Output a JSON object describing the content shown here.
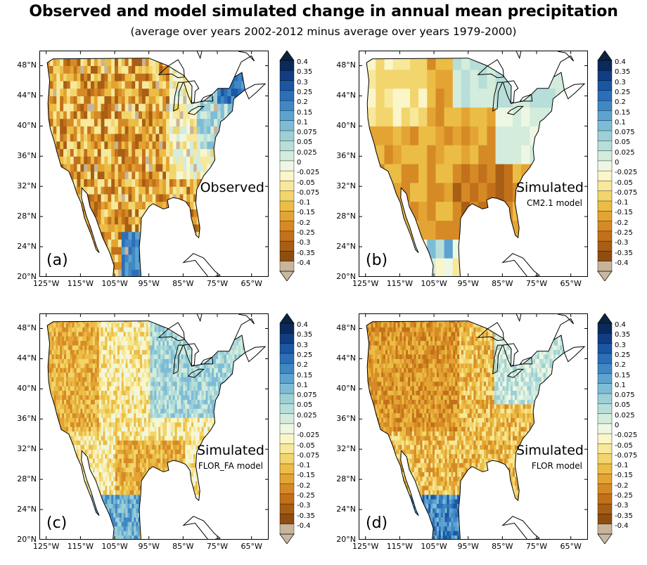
{
  "title": "Observed and model simulated change in annual mean precipitation",
  "subtitle": "(average over years 2002-2012  minus average over years 1979-2000)",
  "lat_ticks": [
    "48°N",
    "44°N",
    "40°N",
    "36°N",
    "32°N",
    "28°N",
    "24°N",
    "20°N"
  ],
  "lon_ticks": [
    "125°W",
    "115°W",
    "105°W",
    "95°W",
    "85°W",
    "75°W",
    "65°W"
  ],
  "colorbar": {
    "labels": [
      "0.4",
      "0.35",
      "0.3",
      "0.25",
      "0.2",
      "0.15",
      "0.1",
      "0.075",
      "0.05",
      "0.025",
      "0",
      "-0.025",
      "-0.05",
      "-0.075",
      "-0.1",
      "-0.15",
      "-0.2",
      "-0.25",
      "-0.3",
      "-0.35",
      "-0.4"
    ],
    "colors": [
      "#0a2a5c",
      "#123d82",
      "#1b56a3",
      "#2c6fb8",
      "#3f88c4",
      "#5ea3cf",
      "#7dbcd6",
      "#9ccfd6",
      "#b7ded8",
      "#d3ecdc",
      "#eef7e3",
      "#fbf6c9",
      "#f7e89a",
      "#f2d56c",
      "#ebbd45",
      "#e3a433",
      "#d68a25",
      "#c2711a",
      "#a85e14",
      "#8f4d10",
      "#c7b49b"
    ],
    "top_cap_color": "#0b2440",
    "bottom_cap_color": "#c9b8a0"
  },
  "panels": [
    {
      "letter": "(a)",
      "label": "Observed",
      "model": "",
      "style": "obs"
    },
    {
      "letter": "(b)",
      "label": "Simulated",
      "model": "CM2.1 model",
      "style": "cm21"
    },
    {
      "letter": "(c)",
      "label": "Simulated",
      "model": "FLOR_FA model",
      "style": "florfa"
    },
    {
      "letter": "(d)",
      "label": "Simulated",
      "model": "FLOR model",
      "style": "flor"
    }
  ]
}
